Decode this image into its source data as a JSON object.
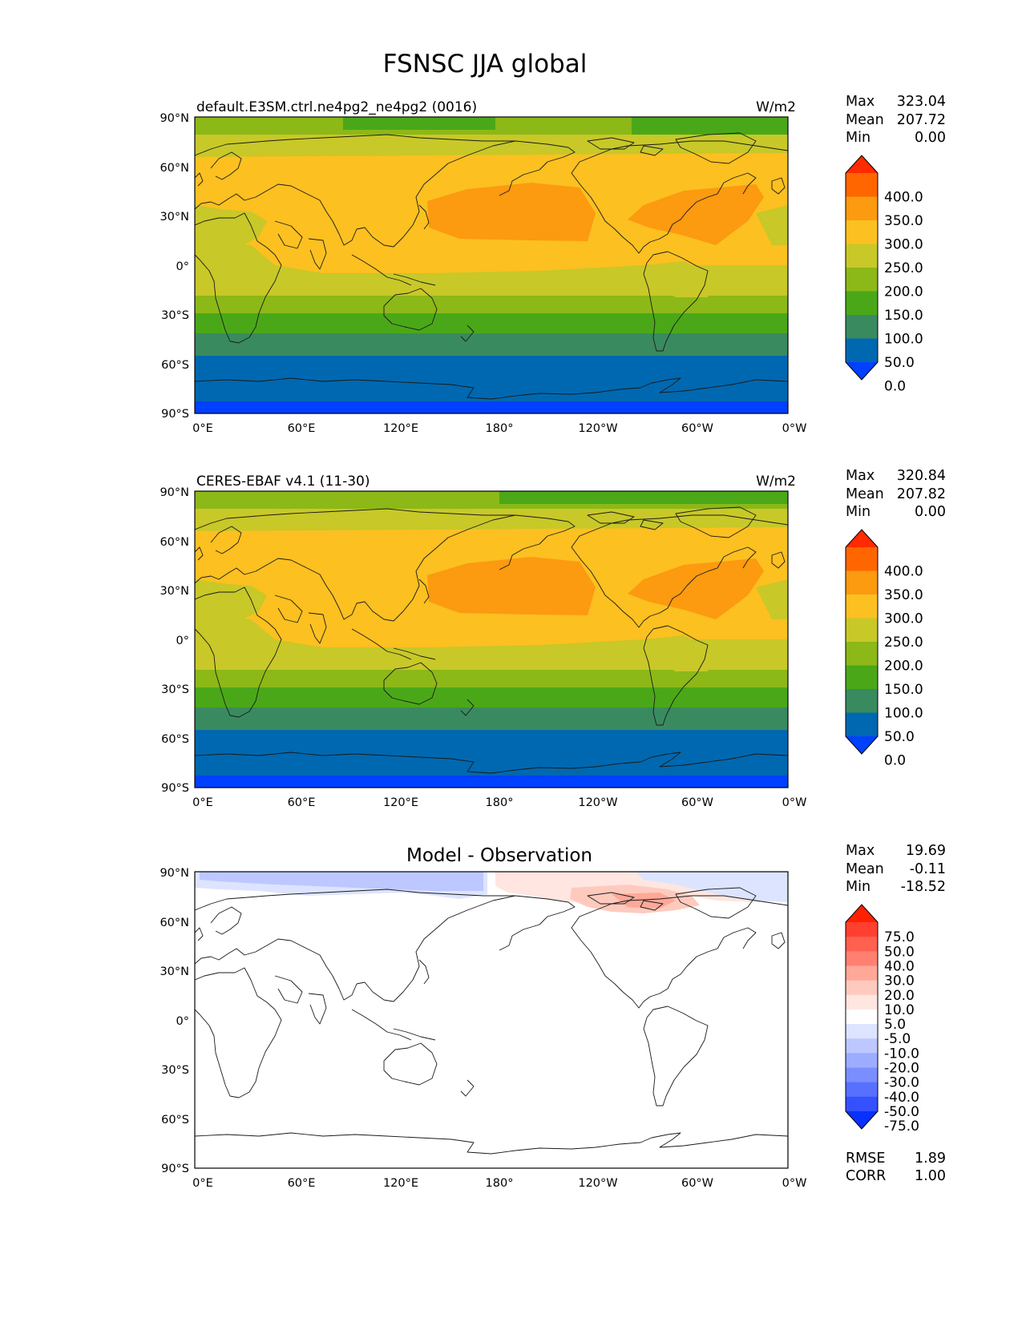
{
  "title": "FSNSC JJA global",
  "tick_labels": {
    "lat": [
      "90°N",
      "60°N",
      "30°N",
      "0°",
      "30°S",
      "60°S",
      "90°S"
    ],
    "lon": [
      "0°E",
      "60°E",
      "120°E",
      "180°",
      "120°W",
      "60°W",
      "0°W"
    ]
  },
  "panels": [
    {
      "id": "test",
      "left_title": "default.E3SM.ctrl.ne4pg2_ne4pg2 (0016)",
      "center_title": "",
      "units": "W/m2",
      "stats": {
        "labels": [
          "Max",
          "Mean",
          "Min"
        ],
        "values": [
          "323.04",
          "207.72",
          "0.00"
        ]
      }
    },
    {
      "id": "ref",
      "left_title": "CERES-EBAF v4.1 (11-30)",
      "center_title": "",
      "units": "W/m2",
      "stats": {
        "labels": [
          "Max",
          "Mean",
          "Min"
        ],
        "values": [
          "320.84",
          "207.82",
          "0.00"
        ]
      }
    },
    {
      "id": "diff",
      "left_title": "",
      "center_title": "Model - Observation",
      "units": "",
      "stats": {
        "labels": [
          "Max",
          "Mean",
          "Min"
        ],
        "values": [
          "19.69",
          "-0.11",
          "-18.52"
        ]
      },
      "metrics": {
        "labels": [
          "RMSE",
          "CORR"
        ],
        "values": [
          "1.89",
          "1.00"
        ]
      }
    }
  ],
  "colorbars": {
    "main": {
      "labels": [
        "400.0",
        "350.0",
        "300.0",
        "250.0",
        "200.0",
        "150.0",
        "100.0",
        "50.0",
        "0.0"
      ],
      "colors": [
        "#ff2a00",
        "#ff6600",
        "#fc9a10",
        "#fcc020",
        "#c8c828",
        "#8cb818",
        "#4aa818",
        "#3a8a60",
        "#0068b0",
        "#0040ff"
      ]
    },
    "diff": {
      "labels": [
        "75.0",
        "50.0",
        "40.0",
        "30.0",
        "20.0",
        "10.0",
        "5.0",
        "-5.0",
        "-10.0",
        "-20.0",
        "-30.0",
        "-40.0",
        "-50.0",
        "-75.0"
      ],
      "colors": [
        "#ff2000",
        "#ff4030",
        "#ff6050",
        "#ff8070",
        "#ffa898",
        "#ffcabe",
        "#ffe6e0",
        "#ffffff",
        "#dce4ff",
        "#bcc8ff",
        "#9cacff",
        "#7a8eff",
        "#5870ff",
        "#3450ff",
        "#0a30ff"
      ]
    }
  }
}
